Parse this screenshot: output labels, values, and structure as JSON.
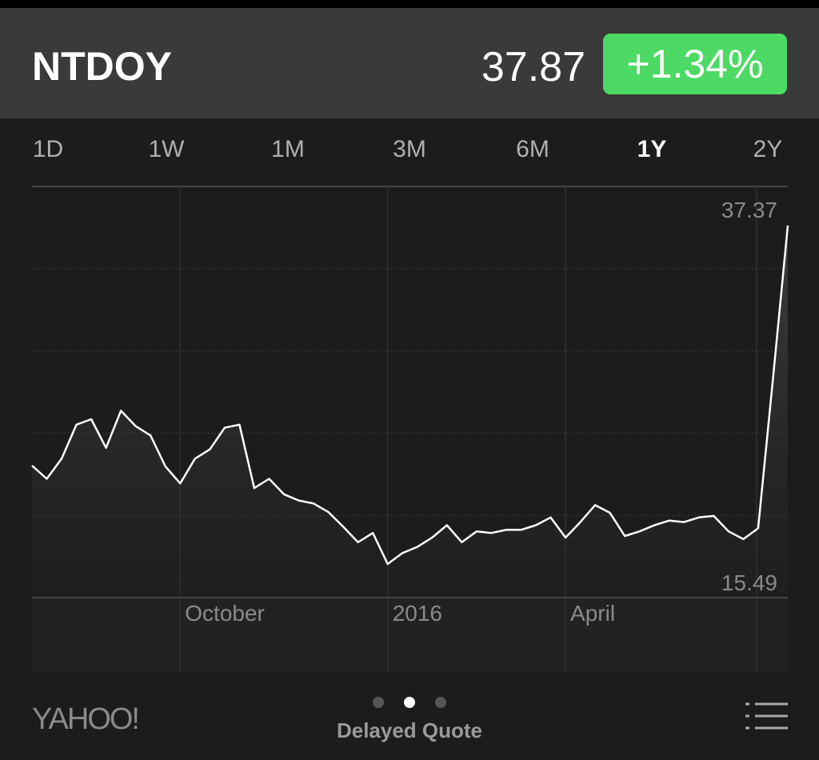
{
  "header": {
    "symbol": "NTDOY",
    "price": "37.87",
    "change": "+1.34%"
  },
  "ranges": [
    "1D",
    "1W",
    "1M",
    "3M",
    "6M",
    "1Y",
    "2Y"
  ],
  "selected_range": "1Y",
  "chart_data": {
    "type": "line",
    "categories": [
      null,
      null,
      null,
      null,
      null,
      null,
      null,
      null,
      null,
      null,
      "October",
      null,
      null,
      null,
      null,
      null,
      null,
      null,
      null,
      null,
      null,
      null,
      null,
      null,
      "2016",
      null,
      null,
      null,
      null,
      null,
      null,
      null,
      null,
      null,
      null,
      null,
      "April",
      null,
      null,
      null,
      null,
      null,
      null,
      null,
      null,
      null,
      null,
      null,
      null,
      null,
      null,
      null
    ],
    "series": [
      {
        "color": "#ffffff",
        "values": [
          21.85,
          21.0,
          22.3,
          24.5,
          24.85,
          23.0,
          25.4,
          24.4,
          23.8,
          21.8,
          20.7,
          22.3,
          22.9,
          24.3,
          24.5,
          20.4,
          21.0,
          20.0,
          19.6,
          19.4,
          18.85,
          17.9,
          16.9,
          17.5,
          15.49,
          16.2,
          16.6,
          17.2,
          18.0,
          16.9,
          17.6,
          17.5,
          17.7,
          17.7,
          18.0,
          18.5,
          17.2,
          18.2,
          19.3,
          18.8,
          17.3,
          17.6,
          18.0,
          18.3,
          18.2,
          18.5,
          18.6,
          17.6,
          17.1,
          17.8,
          27.5,
          37.37
        ]
      }
    ],
    "ylim": [
      13.32,
      39.9
    ],
    "high": 37.37,
    "low": 15.49
  },
  "footer": {
    "brand": "YAHOO!",
    "status": "Delayed Quote"
  }
}
